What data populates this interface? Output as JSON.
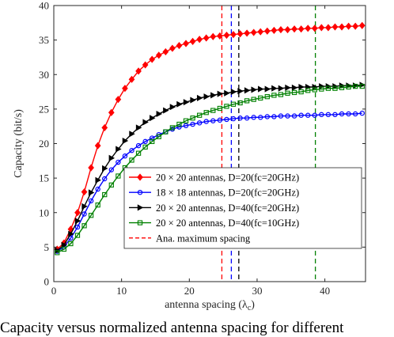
{
  "chart_data": {
    "type": "line",
    "xlabel": "antenna spacing (λc)",
    "ylabel": "Capacity (bit/s)",
    "xlim": [
      0,
      46
    ],
    "ylim": [
      0,
      40
    ],
    "xticks": [
      0,
      10,
      20,
      30,
      40
    ],
    "yticks": [
      0,
      5,
      10,
      15,
      20,
      25,
      30,
      35,
      40
    ],
    "grid": false,
    "legend_position": "lower-right",
    "series": [
      {
        "name": "20 × 20 antennas, D=20(fc=20GHz)",
        "color": "#ff0000",
        "marker": "diamond",
        "x": [
          0.5,
          1.5,
          2.5,
          3.5,
          4.5,
          5.5,
          6.5,
          7.5,
          8.5,
          9.5,
          10.5,
          11.5,
          12.5,
          13.5,
          14.5,
          15.5,
          16.5,
          17.5,
          18.5,
          19.5,
          20.5,
          21.5,
          22.5,
          23.5,
          24.5,
          25.5,
          26.5,
          27.5,
          28.5,
          29.5,
          30.5,
          31.5,
          32.5,
          33.5,
          34.5,
          35.5,
          36.5,
          37.5,
          38.5,
          39.5,
          40.5,
          41.5,
          42.5,
          43.5,
          44.5,
          45.5
        ],
        "y": [
          4.7,
          5.6,
          7.6,
          10.0,
          13.0,
          16.5,
          19.7,
          22.3,
          24.5,
          26.4,
          28.0,
          29.3,
          30.5,
          31.4,
          32.2,
          32.8,
          33.3,
          33.8,
          34.2,
          34.5,
          34.8,
          35.1,
          35.3,
          35.5,
          35.6,
          35.7,
          35.8,
          35.9,
          36.0,
          36.1,
          36.2,
          36.3,
          36.4,
          36.5,
          36.5,
          36.6,
          36.6,
          36.7,
          36.7,
          36.8,
          36.8,
          36.9,
          36.9,
          37.0,
          37.0,
          37.1
        ]
      },
      {
        "name": "18 × 18 antennas, D=20(fc=20GHz)",
        "color": "#0000ff",
        "marker": "circle",
        "x": [
          0.5,
          1.5,
          2.5,
          3.5,
          4.5,
          5.5,
          6.5,
          7.5,
          8.5,
          9.5,
          10.5,
          11.5,
          12.5,
          13.5,
          14.5,
          15.5,
          16.5,
          17.5,
          18.5,
          19.5,
          20.5,
          21.5,
          22.5,
          23.5,
          24.5,
          25.5,
          26.5,
          27.5,
          28.5,
          29.5,
          30.5,
          31.5,
          32.5,
          33.5,
          34.5,
          35.5,
          36.5,
          37.5,
          38.5,
          39.5,
          40.5,
          41.5,
          42.5,
          43.5,
          44.5,
          45.5
        ],
        "y": [
          4.4,
          5.0,
          6.3,
          7.9,
          9.8,
          11.7,
          13.4,
          14.9,
          16.2,
          17.3,
          18.2,
          19.0,
          19.7,
          20.3,
          20.8,
          21.3,
          21.7,
          22.1,
          22.4,
          22.6,
          22.8,
          23.0,
          23.2,
          23.3,
          23.4,
          23.5,
          23.6,
          23.7,
          23.7,
          23.8,
          23.8,
          23.9,
          23.9,
          24.0,
          24.0,
          24.0,
          24.1,
          24.1,
          24.1,
          24.2,
          24.2,
          24.2,
          24.3,
          24.3,
          24.3,
          24.4
        ]
      },
      {
        "name": "20 × 20 antennas, D=40(fc=20GHz)",
        "color": "#000000",
        "marker": "triangle-right",
        "x": [
          0.5,
          1.5,
          2.5,
          3.5,
          4.5,
          5.5,
          6.5,
          7.5,
          8.5,
          9.5,
          10.5,
          11.5,
          12.5,
          13.5,
          14.5,
          15.5,
          16.5,
          17.5,
          18.5,
          19.5,
          20.5,
          21.5,
          22.5,
          23.5,
          24.5,
          25.5,
          26.5,
          27.5,
          28.5,
          29.5,
          30.5,
          31.5,
          32.5,
          33.5,
          34.5,
          35.5,
          36.5,
          37.5,
          38.5,
          39.5,
          40.5,
          41.5,
          42.5,
          43.5,
          44.5,
          45.5
        ],
        "y": [
          4.5,
          5.3,
          6.9,
          8.8,
          10.9,
          12.9,
          14.7,
          16.4,
          17.9,
          19.2,
          20.4,
          21.4,
          22.3,
          23.1,
          23.7,
          24.3,
          24.8,
          25.3,
          25.7,
          26.0,
          26.3,
          26.6,
          26.8,
          27.0,
          27.2,
          27.3,
          27.5,
          27.6,
          27.7,
          27.8,
          27.9,
          27.9,
          28.0,
          28.0,
          28.1,
          28.1,
          28.2,
          28.2,
          28.2,
          28.3,
          28.3,
          28.3,
          28.4,
          28.4,
          28.4,
          28.5
        ]
      },
      {
        "name": "20 × 20 antennas, D=40(fc=10GHz)",
        "color": "#008000",
        "marker": "square",
        "x": [
          0.5,
          1.5,
          2.5,
          3.5,
          4.5,
          5.5,
          6.5,
          7.5,
          8.5,
          9.5,
          10.5,
          11.5,
          12.5,
          13.5,
          14.5,
          15.5,
          16.5,
          17.5,
          18.5,
          19.5,
          20.5,
          21.5,
          22.5,
          23.5,
          24.5,
          25.5,
          26.5,
          27.5,
          28.5,
          29.5,
          30.5,
          31.5,
          32.5,
          33.5,
          34.5,
          35.5,
          36.5,
          37.5,
          38.5,
          39.5,
          40.5,
          41.5,
          42.5,
          43.5,
          44.5,
          45.5
        ],
        "y": [
          4.2,
          4.7,
          5.5,
          6.7,
          8.1,
          9.6,
          11.1,
          12.6,
          14.0,
          15.3,
          16.5,
          17.6,
          18.6,
          19.5,
          20.3,
          21.0,
          21.7,
          22.3,
          22.8,
          23.3,
          23.7,
          24.1,
          24.5,
          24.8,
          25.1,
          25.4,
          25.7,
          25.9,
          26.2,
          26.4,
          26.6,
          26.8,
          27.0,
          27.1,
          27.3,
          27.4,
          27.5,
          27.7,
          27.8,
          27.9,
          28.0,
          28.0,
          28.1,
          28.2,
          28.3,
          28.3
        ]
      }
    ],
    "vlines": [
      {
        "x": 24.8,
        "color": "#ff0000"
      },
      {
        "x": 26.2,
        "color": "#0000ff"
      },
      {
        "x": 27.3,
        "color": "#000000"
      },
      {
        "x": 38.6,
        "color": "#008000"
      }
    ],
    "legend": {
      "entries": [
        {
          "text": "20 × 20 antennas, D=20(fc=20GHz)",
          "color": "#ff0000",
          "marker": "diamond",
          "dash": false
        },
        {
          "text": "18 × 18 antennas, D=20(fc=20GHz)",
          "color": "#0000ff",
          "marker": "circle",
          "dash": false
        },
        {
          "text": "20 × 20 antennas, D=40(fc=20GHz)",
          "color": "#000000",
          "marker": "triangle-right",
          "dash": false
        },
        {
          "text": "20 × 20 antennas, D=40(fc=10GHz)",
          "color": "#008000",
          "marker": "square",
          "dash": false
        },
        {
          "text": "Ana. maximum spacing",
          "color": "#ff0000",
          "marker": "none",
          "dash": true
        }
      ]
    }
  },
  "caption": "Capacity versus normalized antenna spacing for different"
}
